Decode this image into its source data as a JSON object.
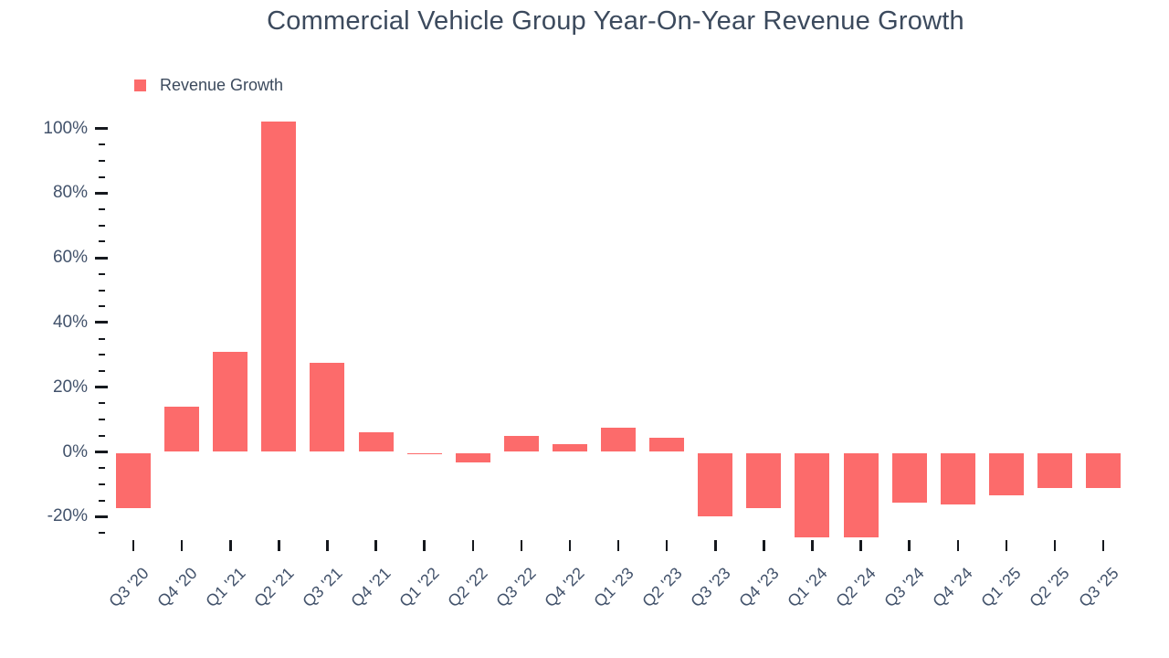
{
  "title": "Commercial Vehicle Group Year-On-Year Revenue Growth",
  "legend": {
    "label": "Revenue Growth"
  },
  "colors": {
    "bar": "#fc6b6b",
    "title_text": "#3c4a5d",
    "axis_label_text": "#42526b",
    "tick": "#16191e",
    "background": "#ffffff"
  },
  "y_axis": {
    "ticks": [
      {
        "value": 100,
        "label": "100%"
      },
      {
        "value": 80,
        "label": "80%"
      },
      {
        "value": 60,
        "label": "60%"
      },
      {
        "value": 40,
        "label": "40%"
      },
      {
        "value": 20,
        "label": "20%"
      },
      {
        "value": 0,
        "label": "0%"
      },
      {
        "value": -20,
        "label": "-20%"
      }
    ],
    "minor_tick_step": 5,
    "minor_tick_min": -25,
    "minor_tick_max": 100
  },
  "chart_data": {
    "type": "bar",
    "title": "Commercial Vehicle Group Year-On-Year Revenue Growth",
    "xlabel": "",
    "ylabel": "",
    "categories": [
      "Q3 '20",
      "Q4 '20",
      "Q1 '21",
      "Q2 '21",
      "Q3 '21",
      "Q4 '21",
      "Q1 '22",
      "Q2 '22",
      "Q3 '22",
      "Q4 '22",
      "Q1 '23",
      "Q2 '23",
      "Q3 '23",
      "Q4 '23",
      "Q1 '24",
      "Q2 '24",
      "Q3 '24",
      "Q4 '24",
      "Q1 '25",
      "Q2 '25",
      "Q3 '25"
    ],
    "series": [
      {
        "name": "Revenue Growth",
        "values": [
          -17,
          14,
          31,
          102,
          27.5,
          6,
          -0.5,
          -3,
          5,
          2.5,
          7.5,
          4.5,
          -19.5,
          -17,
          -26,
          -26,
          -15.5,
          -16,
          -13,
          -11,
          -11
        ]
      }
    ],
    "unit": "%",
    "ylim": [
      -27,
      103
    ],
    "grid": false,
    "legend_position": "top-left"
  }
}
